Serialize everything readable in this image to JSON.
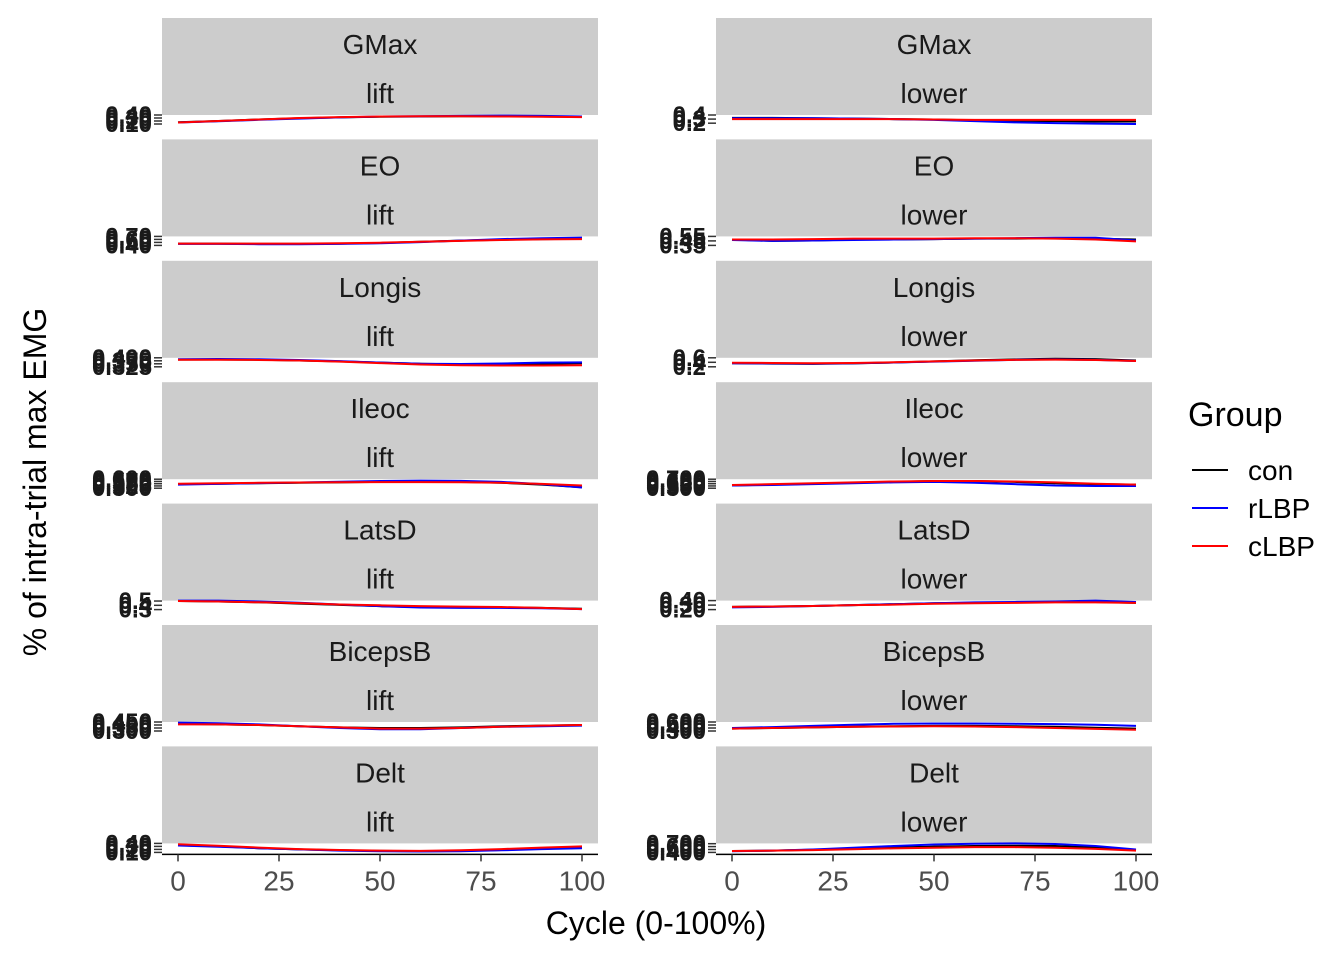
{
  "chart_data": {
    "type": "line",
    "ylabel": "% of intra-trial max EMG",
    "xlabel": "Cycle (0-100%)",
    "xlim": [
      0,
      100
    ],
    "xticks": [
      0,
      25,
      50,
      75,
      100
    ],
    "x": [
      0,
      10,
      20,
      30,
      40,
      50,
      60,
      70,
      80,
      90,
      100
    ],
    "legend": {
      "title": "Group",
      "placement": "right",
      "entries": [
        {
          "name": "con",
          "color": "#000000"
        },
        {
          "name": "rLBP",
          "color": "#0000ff"
        },
        {
          "name": "cLBP",
          "color": "#ff0000"
        }
      ]
    },
    "columns": [
      "lift",
      "lower"
    ],
    "facets": [
      {
        "muscle": "GMax",
        "phase": "lift",
        "yticks": [
          "0.10",
          "0.20",
          "0.30",
          "0.40"
        ],
        "series": [
          {
            "name": "con",
            "values": [
              0.16,
              0.2,
              0.25,
              0.29,
              0.32,
              0.34,
              0.35,
              0.36,
              0.36,
              0.35,
              0.34
            ]
          },
          {
            "name": "rLBP",
            "values": [
              0.15,
              0.19,
              0.24,
              0.28,
              0.32,
              0.35,
              0.36,
              0.37,
              0.38,
              0.37,
              0.35
            ]
          },
          {
            "name": "cLBP",
            "values": [
              0.15,
              0.2,
              0.25,
              0.3,
              0.33,
              0.35,
              0.36,
              0.36,
              0.35,
              0.34,
              0.33
            ]
          }
        ]
      },
      {
        "muscle": "GMax",
        "phase": "lower",
        "yticks": [
          "0.2",
          "0.3",
          "0.4"
        ],
        "series": [
          {
            "name": "con",
            "values": [
              0.33,
              0.33,
              0.32,
              0.31,
              0.3,
              0.29,
              0.27,
              0.26,
              0.25,
              0.24,
              0.24
            ]
          },
          {
            "name": "rLBP",
            "values": [
              0.32,
              0.32,
              0.32,
              0.31,
              0.3,
              0.28,
              0.25,
              0.22,
              0.2,
              0.19,
              0.18
            ]
          },
          {
            "name": "cLBP",
            "values": [
              0.3,
              0.3,
              0.3,
              0.3,
              0.3,
              0.29,
              0.28,
              0.28,
              0.28,
              0.28,
              0.28
            ]
          }
        ]
      },
      {
        "muscle": "EO",
        "phase": "lift",
        "yticks": [
          "0.40",
          "0.50",
          "0.60",
          "0.70"
        ],
        "series": [
          {
            "name": "con",
            "values": [
              0.46,
              0.46,
              0.45,
              0.45,
              0.46,
              0.48,
              0.52,
              0.56,
              0.59,
              0.61,
              0.62
            ]
          },
          {
            "name": "rLBP",
            "values": [
              0.45,
              0.45,
              0.44,
              0.44,
              0.45,
              0.47,
              0.51,
              0.56,
              0.61,
              0.64,
              0.66
            ]
          },
          {
            "name": "cLBP",
            "values": [
              0.46,
              0.46,
              0.46,
              0.46,
              0.47,
              0.49,
              0.52,
              0.55,
              0.58,
              0.6,
              0.61
            ]
          }
        ]
      },
      {
        "muscle": "EO",
        "phase": "lower",
        "yticks": [
          "0.35",
          "0.45",
          "0.55"
        ],
        "series": [
          {
            "name": "con",
            "values": [
              0.48,
              0.45,
              0.46,
              0.48,
              0.48,
              0.49,
              0.5,
              0.5,
              0.51,
              0.5,
              0.48
            ]
          },
          {
            "name": "rLBP",
            "values": [
              0.47,
              0.45,
              0.46,
              0.47,
              0.48,
              0.49,
              0.5,
              0.51,
              0.52,
              0.52,
              0.46
            ]
          },
          {
            "name": "cLBP",
            "values": [
              0.48,
              0.48,
              0.49,
              0.5,
              0.5,
              0.5,
              0.51,
              0.51,
              0.5,
              0.48,
              0.44
            ]
          }
        ]
      },
      {
        "muscle": "Longis",
        "phase": "lift",
        "yticks": [
          "0.325",
          "0.350",
          "0.375",
          "0.400"
        ],
        "series": [
          {
            "name": "con",
            "values": [
              0.385,
              0.386,
              0.384,
              0.378,
              0.37,
              0.36,
              0.35,
              0.345,
              0.345,
              0.35,
              0.355
            ]
          },
          {
            "name": "rLBP",
            "values": [
              0.388,
              0.39,
              0.388,
              0.382,
              0.372,
              0.36,
              0.35,
              0.348,
              0.352,
              0.36,
              0.362
            ]
          },
          {
            "name": "cLBP",
            "values": [
              0.384,
              0.384,
              0.382,
              0.378,
              0.368,
              0.356,
              0.344,
              0.338,
              0.336,
              0.336,
              0.338
            ]
          }
        ]
      },
      {
        "muscle": "Longis",
        "phase": "lower",
        "yticks": [
          "0.2",
          "0.4",
          "0.6"
        ],
        "series": [
          {
            "name": "con",
            "values": [
              0.36,
              0.34,
              0.33,
              0.35,
              0.39,
              0.44,
              0.49,
              0.53,
              0.56,
              0.54,
              0.48
            ]
          },
          {
            "name": "rLBP",
            "values": [
              0.36,
              0.35,
              0.34,
              0.36,
              0.39,
              0.43,
              0.47,
              0.51,
              0.53,
              0.51,
              0.46
            ]
          },
          {
            "name": "cLBP",
            "values": [
              0.38,
              0.37,
              0.36,
              0.37,
              0.4,
              0.44,
              0.48,
              0.51,
              0.52,
              0.5,
              0.46
            ]
          }
        ]
      },
      {
        "muscle": "Ileoc",
        "phase": "lift",
        "yticks": [
          "0.500",
          "0.525",
          "0.550",
          "0.575",
          "0.600"
        ],
        "series": [
          {
            "name": "con",
            "values": [
              0.545,
              0.55,
              0.555,
              0.56,
              0.565,
              0.57,
              0.572,
              0.57,
              0.56,
              0.54,
              0.51
            ]
          },
          {
            "name": "rLBP",
            "values": [
              0.54,
              0.548,
              0.556,
              0.564,
              0.572,
              0.58,
              0.584,
              0.582,
              0.57,
              0.545,
              0.508
            ]
          },
          {
            "name": "cLBP",
            "values": [
              0.55,
              0.555,
              0.56,
              0.563,
              0.566,
              0.568,
              0.568,
              0.566,
              0.56,
              0.548,
              0.53
            ]
          }
        ]
      },
      {
        "muscle": "Ileoc",
        "phase": "lower",
        "yticks": [
          "0.500",
          "0.550",
          "0.600",
          "0.650",
          "0.700"
        ],
        "series": [
          {
            "name": "con",
            "values": [
              0.56,
              0.58,
              0.6,
              0.62,
              0.64,
              0.66,
              0.66,
              0.64,
              0.61,
              0.59,
              0.58
            ]
          },
          {
            "name": "rLBP",
            "values": [
              0.56,
              0.57,
              0.59,
              0.61,
              0.63,
              0.64,
              0.62,
              0.59,
              0.56,
              0.55,
              0.55
            ]
          },
          {
            "name": "cLBP",
            "values": [
              0.57,
              0.59,
              0.61,
              0.63,
              0.65,
              0.66,
              0.66,
              0.65,
              0.63,
              0.6,
              0.58
            ]
          }
        ]
      },
      {
        "muscle": "LatsD",
        "phase": "lift",
        "yticks": [
          "0.3",
          "0.4",
          "0.5"
        ],
        "series": [
          {
            "name": "con",
            "values": [
              0.5,
              0.49,
              0.47,
              0.44,
              0.41,
              0.38,
              0.36,
              0.35,
              0.35,
              0.34,
              0.32
            ]
          },
          {
            "name": "rLBP",
            "values": [
              0.51,
              0.51,
              0.49,
              0.46,
              0.42,
              0.38,
              0.35,
              0.34,
              0.34,
              0.33,
              0.31
            ]
          },
          {
            "name": "cLBP",
            "values": [
              0.5,
              0.49,
              0.47,
              0.45,
              0.42,
              0.4,
              0.38,
              0.37,
              0.36,
              0.34,
              0.31
            ]
          }
        ]
      },
      {
        "muscle": "LatsD",
        "phase": "lower",
        "yticks": [
          "0.20",
          "0.30",
          "0.40"
        ],
        "series": [
          {
            "name": "con",
            "values": [
              0.26,
              0.27,
              0.28,
              0.3,
              0.32,
              0.34,
              0.35,
              0.36,
              0.37,
              0.37,
              0.35
            ]
          },
          {
            "name": "rLBP",
            "values": [
              0.25,
              0.26,
              0.28,
              0.3,
              0.32,
              0.34,
              0.36,
              0.37,
              0.38,
              0.4,
              0.37
            ]
          },
          {
            "name": "cLBP",
            "values": [
              0.26,
              0.27,
              0.28,
              0.3,
              0.31,
              0.33,
              0.34,
              0.35,
              0.36,
              0.36,
              0.35
            ]
          }
        ]
      },
      {
        "muscle": "BicepsB",
        "phase": "lift",
        "yticks": [
          "0.300",
          "0.350",
          "0.400",
          "0.450"
        ],
        "series": [
          {
            "name": "con",
            "values": [
              0.42,
              0.41,
              0.4,
              0.38,
              0.36,
              0.35,
              0.35,
              0.36,
              0.38,
              0.39,
              0.4
            ]
          },
          {
            "name": "rLBP",
            "values": [
              0.44,
              0.43,
              0.41,
              0.38,
              0.35,
              0.33,
              0.33,
              0.35,
              0.37,
              0.38,
              0.39
            ]
          },
          {
            "name": "cLBP",
            "values": [
              0.41,
              0.41,
              0.4,
              0.38,
              0.36,
              0.34,
              0.34,
              0.35,
              0.37,
              0.39,
              0.4
            ]
          }
        ]
      },
      {
        "muscle": "BicepsB",
        "phase": "lower",
        "yticks": [
          "0.300",
          "0.400",
          "0.500",
          "0.600"
        ],
        "series": [
          {
            "name": "con",
            "values": [
              0.38,
              0.4,
              0.42,
              0.44,
              0.46,
              0.47,
              0.47,
              0.46,
              0.44,
              0.41,
              0.38
            ]
          },
          {
            "name": "rLBP",
            "values": [
              0.4,
              0.43,
              0.47,
              0.51,
              0.54,
              0.55,
              0.55,
              0.54,
              0.53,
              0.51,
              0.47
            ]
          },
          {
            "name": "cLBP",
            "values": [
              0.38,
              0.4,
              0.42,
              0.44,
              0.45,
              0.46,
              0.45,
              0.43,
              0.4,
              0.37,
              0.34
            ]
          }
        ]
      },
      {
        "muscle": "Delt",
        "phase": "lift",
        "yticks": [
          "0.10",
          "0.20",
          "0.30",
          "0.40"
        ],
        "series": [
          {
            "name": "con",
            "values": [
              0.34,
              0.3,
              0.24,
              0.2,
              0.17,
              0.15,
              0.14,
              0.15,
              0.18,
              0.22,
              0.25
            ]
          },
          {
            "name": "rLBP",
            "values": [
              0.33,
              0.29,
              0.24,
              0.2,
              0.16,
              0.14,
              0.13,
              0.14,
              0.17,
              0.21,
              0.24
            ]
          },
          {
            "name": "cLBP",
            "values": [
              0.37,
              0.32,
              0.26,
              0.21,
              0.18,
              0.16,
              0.15,
              0.17,
              0.21,
              0.26,
              0.3
            ]
          }
        ]
      },
      {
        "muscle": "Delt",
        "phase": "lower",
        "yticks": [
          "0.400",
          "0.500",
          "0.600",
          "0.700"
        ],
        "series": [
          {
            "name": "con",
            "values": [
              0.45,
              0.46,
              0.49,
              0.53,
              0.57,
              0.6,
              0.62,
              0.63,
              0.62,
              0.57,
              0.48
            ]
          },
          {
            "name": "rLBP",
            "values": [
              0.44,
              0.46,
              0.5,
              0.56,
              0.62,
              0.67,
              0.7,
              0.71,
              0.69,
              0.62,
              0.5
            ]
          },
          {
            "name": "cLBP",
            "values": [
              0.45,
              0.46,
              0.48,
              0.51,
              0.54,
              0.56,
              0.58,
              0.58,
              0.56,
              0.52,
              0.46
            ]
          }
        ]
      }
    ]
  }
}
